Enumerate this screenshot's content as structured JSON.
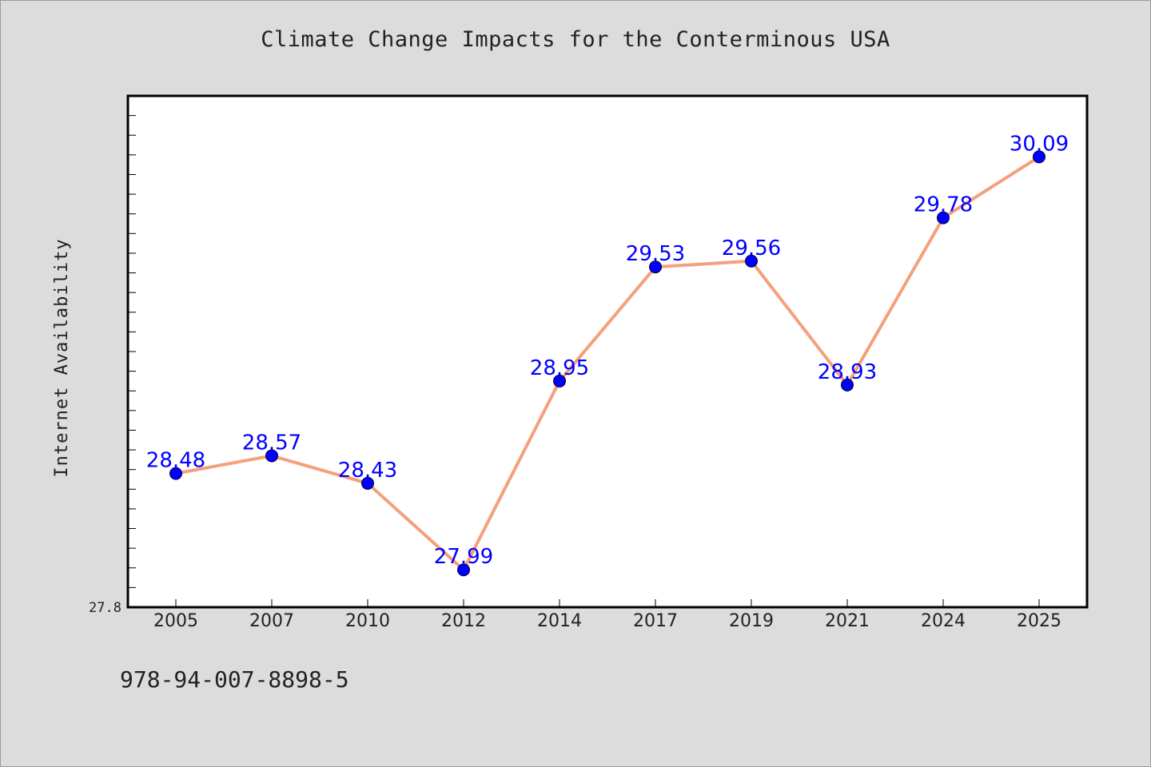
{
  "chart_data": {
    "type": "line",
    "title": "Climate Change Impacts for the Conterminous USA",
    "xlabel": "",
    "ylabel": "Internet Availability",
    "categories": [
      "2005",
      "2007",
      "2010",
      "2012",
      "2014",
      "2017",
      "2019",
      "2021",
      "2024",
      "2025"
    ],
    "series": [
      {
        "values": [
          28.48,
          28.57,
          28.43,
          27.99,
          28.95,
          29.53,
          29.56,
          28.93,
          29.78,
          30.09
        ]
      }
    ],
    "data_labels": [
      "28.48",
      "28.57",
      "28.43",
      "27.99",
      "28.95",
      "29.53",
      "29.56",
      "28.93",
      "29.78",
      "30.09"
    ],
    "y_tick_labels": [
      "27.8"
    ],
    "ylim": [
      27.8,
      30.4
    ],
    "grid": false,
    "colors": {
      "line": "#f4a07c",
      "marker": "#0000ff",
      "data_label": "#0000ff",
      "plot_background": "#ffffff",
      "page_background": "#dcdcdc"
    }
  },
  "footer": {
    "text": "978-94-007-8898-5"
  }
}
